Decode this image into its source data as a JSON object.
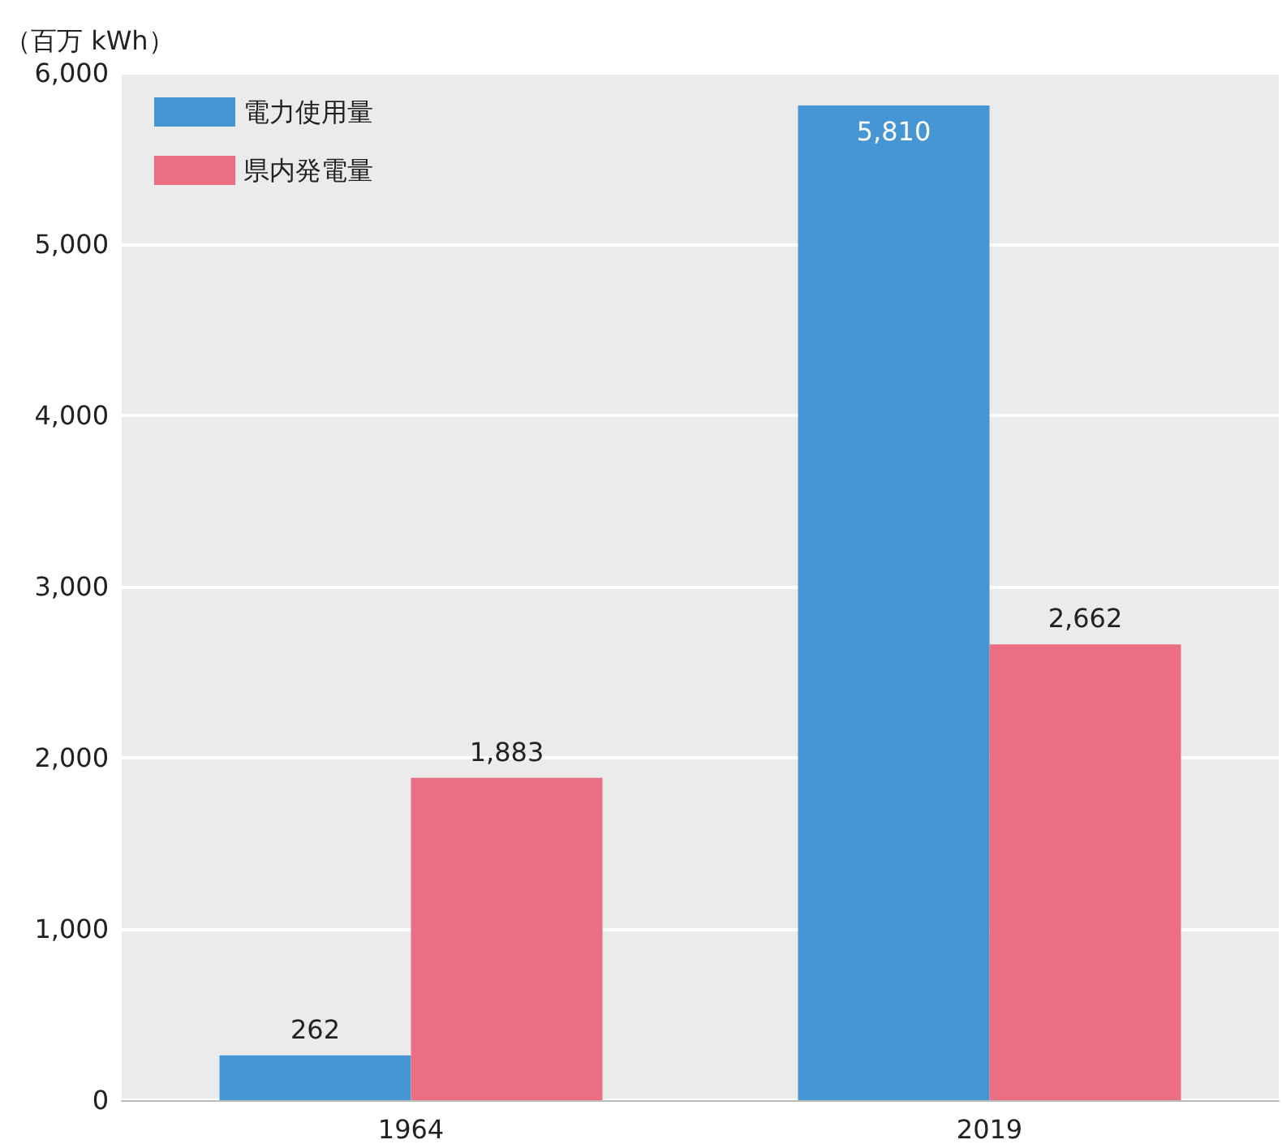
{
  "chart_data": {
    "type": "bar",
    "ylabel": "（百万 kWh）",
    "categories": [
      "1964",
      "2019"
    ],
    "series": [
      {
        "name": "電力使用量",
        "color": "#4696d4",
        "values": [
          262,
          5810
        ],
        "value_labels": [
          "262",
          "5,810"
        ]
      },
      {
        "name": "県内発電量",
        "color": "#ec6e84",
        "values": [
          1883,
          2662
        ],
        "value_labels": [
          "1,883",
          "2,662"
        ]
      }
    ],
    "ylim": [
      0,
      6000
    ],
    "yticks": [
      0,
      {
        "value": 1000,
        "label": "1,000"
      },
      {
        "value": 2000,
        "label": "2,000"
      },
      {
        "value": 3000,
        "label": "3,000"
      },
      {
        "value": 4000,
        "label": "4,000"
      },
      {
        "value": 5000,
        "label": "5,000"
      },
      {
        "value": 6000,
        "label": "6,000"
      }
    ],
    "grid": "y",
    "legend": "top left"
  }
}
